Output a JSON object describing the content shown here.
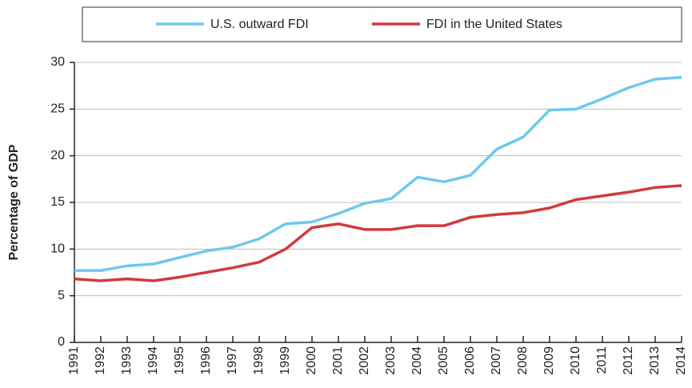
{
  "chart_data": {
    "type": "line",
    "y_label": "Percentage of GDP",
    "categories": [
      "1991",
      "1992",
      "1993",
      "1994",
      "1995",
      "1996",
      "1997",
      "1998",
      "1999",
      "2000",
      "2001",
      "2002",
      "2003",
      "2004",
      "2005",
      "2006",
      "2007",
      "2008",
      "2009",
      "2010",
      "2011",
      "2012",
      "2013",
      "2014"
    ],
    "series": [
      {
        "name": "U.S. outward FDI",
        "color": "#6dc8ef",
        "values": [
          7.7,
          7.7,
          8.2,
          8.4,
          9.1,
          9.8,
          10.2,
          11.1,
          12.7,
          12.9,
          13.8,
          14.9,
          15.4,
          17.7,
          17.2,
          17.9,
          20.7,
          22.0,
          24.9,
          25.0,
          26.1,
          27.3,
          28.2,
          28.4
        ]
      },
      {
        "name": "FDI in the United States",
        "color": "#d1393f",
        "values": [
          6.8,
          6.6,
          6.8,
          6.6,
          7.0,
          7.5,
          8.0,
          8.6,
          10.0,
          12.3,
          12.7,
          12.1,
          12.1,
          12.5,
          12.5,
          13.4,
          13.7,
          13.9,
          14.4,
          15.3,
          15.7,
          16.1,
          16.6,
          16.8
        ]
      }
    ],
    "ylim": [
      0,
      30
    ],
    "yticks": [
      0,
      5,
      10,
      15,
      20,
      25,
      30
    ],
    "grid": true,
    "legend": "top"
  }
}
